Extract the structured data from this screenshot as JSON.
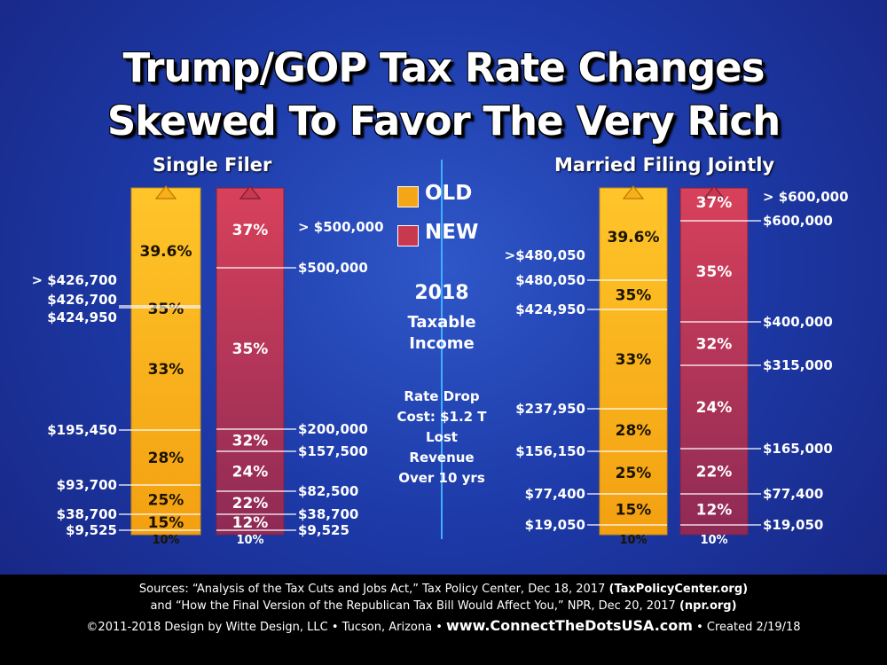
{
  "title_line1": "Trump/GOP Tax Rate Changes",
  "title_line2": "Skewed To Favor The Very Rich",
  "legend": {
    "old_label": "OLD",
    "new_label": "NEW",
    "old_color": "#f5a617",
    "new_color": "#c8384e"
  },
  "center_info": {
    "year": "2018",
    "taxable_line1": "Taxable",
    "taxable_line2": "Income",
    "cost_lines": [
      "Rate Drop",
      "Cost: $1.2 T",
      "Lost",
      "Revenue",
      "Over 10 yrs"
    ]
  },
  "chart_data": [
    {
      "type": "bar",
      "title": "Single Filer",
      "series": [
        {
          "name": "OLD",
          "brackets": [
            {
              "rate": "10%",
              "from": 0,
              "to": 9525
            },
            {
              "rate": "15%",
              "from": 9525,
              "to": 38700
            },
            {
              "rate": "25%",
              "from": 38700,
              "to": 93700
            },
            {
              "rate": "28%",
              "from": 93700,
              "to": 195450
            },
            {
              "rate": "33%",
              "from": 195450,
              "to": 424950
            },
            {
              "rate": "35%",
              "from": 424950,
              "to": 426700
            },
            {
              "rate": "39.6%",
              "from": 426700,
              "to": null
            }
          ],
          "threshold_labels": [
            "$9,525",
            "$38,700",
            "$93,700",
            "$195,450",
            "$424,950",
            "$426,700",
            "> $426,700"
          ]
        },
        {
          "name": "NEW",
          "brackets": [
            {
              "rate": "10%",
              "from": 0,
              "to": 9525
            },
            {
              "rate": "12%",
              "from": 9525,
              "to": 38700
            },
            {
              "rate": "22%",
              "from": 38700,
              "to": 82500
            },
            {
              "rate": "24%",
              "from": 82500,
              "to": 157500
            },
            {
              "rate": "32%",
              "from": 157500,
              "to": 200000
            },
            {
              "rate": "35%",
              "from": 200000,
              "to": 500000
            },
            {
              "rate": "37%",
              "from": 500000,
              "to": null
            }
          ],
          "threshold_labels": [
            "$9,525",
            "$38,700",
            "$82,500",
            "$157,500",
            "$200,000",
            "$500,000",
            "> $500,000"
          ]
        }
      ]
    },
    {
      "type": "bar",
      "title": "Married Filing Jointly",
      "series": [
        {
          "name": "OLD",
          "brackets": [
            {
              "rate": "10%",
              "from": 0,
              "to": 19050
            },
            {
              "rate": "15%",
              "from": 19050,
              "to": 77400
            },
            {
              "rate": "25%",
              "from": 77400,
              "to": 156150
            },
            {
              "rate": "28%",
              "from": 156150,
              "to": 237950
            },
            {
              "rate": "33%",
              "from": 237950,
              "to": 424950
            },
            {
              "rate": "35%",
              "from": 424950,
              "to": 480050
            },
            {
              "rate": "39.6%",
              "from": 480050,
              "to": null
            }
          ],
          "threshold_labels": [
            "$19,050",
            "$77,400",
            "$156,150",
            "$237,950",
            "$424,950",
            "$480,050",
            ">$480,050"
          ]
        },
        {
          "name": "NEW",
          "brackets": [
            {
              "rate": "10%",
              "from": 0,
              "to": 19050
            },
            {
              "rate": "12%",
              "from": 19050,
              "to": 77400
            },
            {
              "rate": "22%",
              "from": 77400,
              "to": 165000
            },
            {
              "rate": "24%",
              "from": 165000,
              "to": 315000
            },
            {
              "rate": "32%",
              "from": 315000,
              "to": 400000
            },
            {
              "rate": "35%",
              "from": 400000,
              "to": 600000
            },
            {
              "rate": "37%",
              "from": 600000,
              "to": null
            }
          ],
          "threshold_labels": [
            "$19,050",
            "$77,400",
            "$165,000",
            "$315,000",
            "$400,000",
            "$600,000",
            "> $600,000"
          ]
        }
      ]
    }
  ],
  "footer": {
    "line1_prefix": "Sources: “Analysis of the Tax Cuts and Jobs Act,” Tax Policy Center, Dec 18, 2017 ",
    "line1_bold": "(TaxPolicyCenter.org)",
    "line2_prefix": "and “How the Final Version of the Republican Tax Bill Would Affect You,” NPR, Dec 20, 2017 ",
    "line2_bold": "(npr.org)",
    "line3_left": "©2011-2018 Design by Witte Design, LLC • Tucson, Arizona •",
    "line3_url": "www.ConnectTheDotsUSA.com",
    "line3_right": "• Created 2/19/18"
  }
}
